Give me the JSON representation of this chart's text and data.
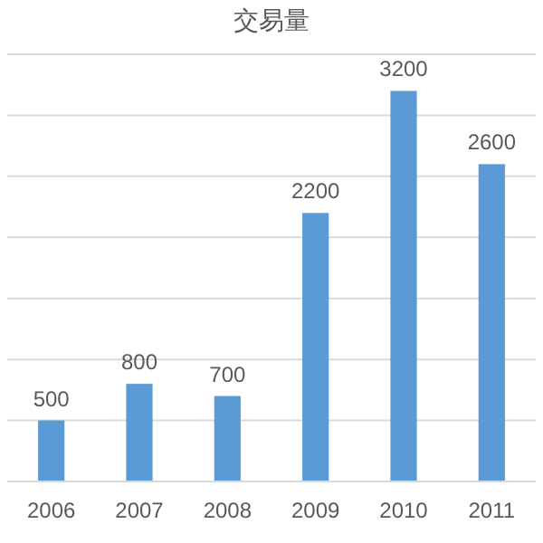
{
  "chart_data": {
    "type": "bar",
    "title": "交易量",
    "categories": [
      "2006",
      "2007",
      "2008",
      "2009",
      "2010",
      "2011"
    ],
    "values": [
      500,
      800,
      700,
      2200,
      3200,
      2600
    ],
    "color": "#5b9bd5",
    "ylim": [
      0,
      3500
    ],
    "yticks": [
      {
        "value": 0,
        "label": null
      },
      {
        "value": 500,
        "label": null
      },
      {
        "value": 1000,
        "label": null
      },
      {
        "value": 1500,
        "label": null
      },
      {
        "value": 2000,
        "label": null
      },
      {
        "value": 2500,
        "label": null
      },
      {
        "value": 3000,
        "label": null
      },
      {
        "value": 3500,
        "label": null
      }
    ],
    "tick_labels": "x",
    "grid": "y",
    "data_labels": true
  }
}
